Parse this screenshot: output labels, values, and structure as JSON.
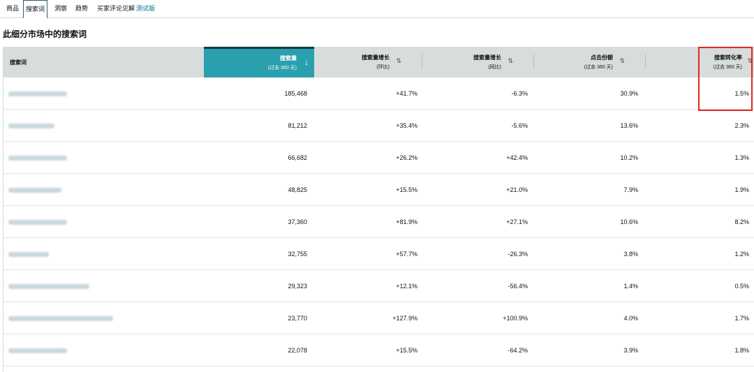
{
  "tabs": [
    {
      "label": "商品",
      "active": false
    },
    {
      "label": "搜索词",
      "active": true
    },
    {
      "label": "洞察",
      "active": false
    },
    {
      "label": "趋势",
      "active": false
    },
    {
      "label": "买家评论见解",
      "active": false,
      "badge": "测试版"
    }
  ],
  "section_title": "此细分市场中的搜索词",
  "table": {
    "columns": [
      {
        "label": "搜索词",
        "sub": ""
      },
      {
        "label": "搜索量",
        "sub": "(过去 360 天)",
        "sort": "desc"
      },
      {
        "label": "搜索量增长",
        "sub": "(环比)",
        "sort": "both"
      },
      {
        "label": "搜索量增长",
        "sub": "(同比)",
        "sort": "both"
      },
      {
        "label": "点击份额",
        "sub": "(过去 360 天)",
        "sort": "both"
      },
      {
        "label": "搜索转化率",
        "sub": "(过去 360 天)",
        "sort": "both"
      }
    ],
    "rows": [
      {
        "volume": "185,468",
        "mom": "+41.7%",
        "yoy": "-6.3%",
        "click_share": "30.9%",
        "conversion": "1.5%"
      },
      {
        "volume": "81,212",
        "mom": "+35.4%",
        "yoy": "-5.6%",
        "click_share": "13.6%",
        "conversion": "2.3%"
      },
      {
        "volume": "66,682",
        "mom": "+26.2%",
        "yoy": "+42.4%",
        "click_share": "10.2%",
        "conversion": "1.3%"
      },
      {
        "volume": "48,825",
        "mom": "+15.5%",
        "yoy": "+21.0%",
        "click_share": "7.9%",
        "conversion": "1.9%"
      },
      {
        "volume": "37,360",
        "mom": "+81.9%",
        "yoy": "+27.1%",
        "click_share": "10.6%",
        "conversion": "8.2%"
      },
      {
        "volume": "32,755",
        "mom": "+57.7%",
        "yoy": "-26.3%",
        "click_share": "3.8%",
        "conversion": "1.2%"
      },
      {
        "volume": "29,323",
        "mom": "+12.1%",
        "yoy": "-56.4%",
        "click_share": "1.4%",
        "conversion": "0.5%"
      },
      {
        "volume": "23,770",
        "mom": "+127.9%",
        "yoy": "+100.9%",
        "click_share": "4.0%",
        "conversion": "1.7%"
      },
      {
        "volume": "22,078",
        "mom": "+15.5%",
        "yoy": "-64.2%",
        "click_share": "3.9%",
        "conversion": "1.8%"
      }
    ]
  },
  "colors": {
    "sorted_header": "#2aa0ae",
    "header_bg": "#d8dcdc",
    "highlight": "#e0281f"
  }
}
